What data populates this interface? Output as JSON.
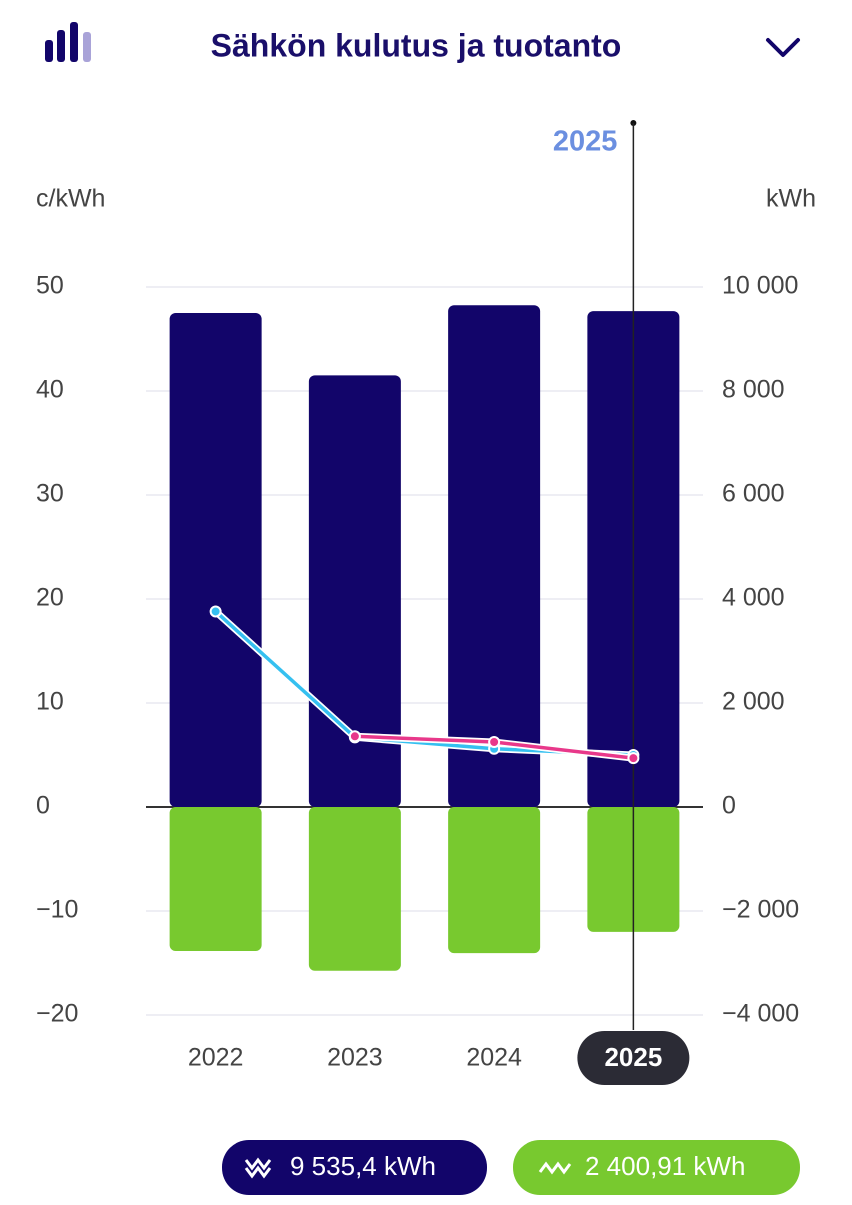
{
  "header": {
    "title": "Sähkön kulutus ja tuotanto"
  },
  "chart_data": {
    "type": "bar",
    "y_label": "c/kWh",
    "y2_label": "kWh",
    "categories": [
      "2022",
      "2023",
      "2024",
      "2025"
    ],
    "selected": 3,
    "series": [
      {
        "type": "bar",
        "color": "#12056a",
        "axis": "y2",
        "values": [
          9500,
          8300,
          9650,
          9535.4
        ]
      },
      {
        "type": "bar",
        "color": "#78c92f",
        "axis": "y2",
        "values": [
          -2770,
          -3150,
          -2810,
          -2400.91
        ]
      },
      {
        "type": "line",
        "color": "#35c0f0",
        "axis": "y",
        "values": [
          18.8,
          6.7,
          5.6,
          5.0
        ]
      },
      {
        "type": "line",
        "color": "#e8388a",
        "axis": "y",
        "values": [
          null,
          6.8,
          6.25,
          4.7
        ]
      }
    ],
    "ylim": [
      -20,
      50
    ],
    "yticks": [
      {
        "value": -20,
        "label": "−20"
      },
      {
        "value": -10,
        "label": "−10"
      },
      0,
      10,
      20,
      30,
      40,
      50
    ],
    "y2lim": [
      -4000,
      10000
    ],
    "y2ticks": [
      {
        "value": -4000,
        "label": "−4 000"
      },
      {
        "value": -2000,
        "label": "−2 000"
      },
      0,
      {
        "value": 2000,
        "label": "2 000"
      },
      {
        "value": 4000,
        "label": "4 000"
      },
      {
        "value": 6000,
        "label": "6 000"
      },
      {
        "value": 8000,
        "label": "8 000"
      },
      {
        "value": 10000,
        "label": "10 000"
      }
    ],
    "grid": true
  },
  "summary": [
    "9 535,4 kWh",
    "2 400,91 kWh"
  ]
}
